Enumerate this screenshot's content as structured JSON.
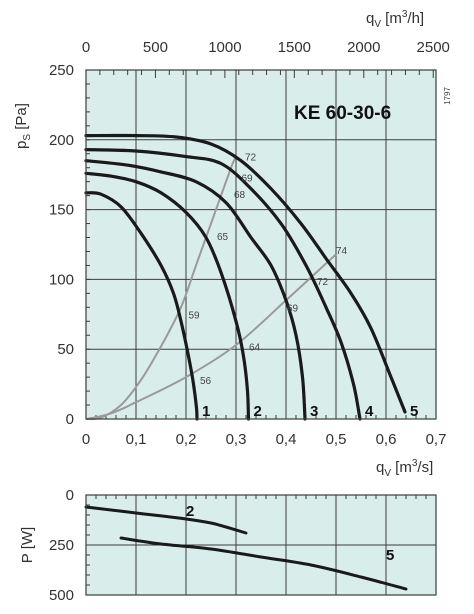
{
  "colors": {
    "plot_bg": "#d9eeea",
    "grid": "#3c3c3c",
    "curve": "#1a1a1a",
    "efficiency_curve": "#9a9a9a"
  },
  "chart_data": [
    {
      "type": "line",
      "title": "KE  60-30-6",
      "code": "1797",
      "xlabel": "qV [m3/s]",
      "x2label": "qV [m3/h]",
      "ylabel": "pS [Pa]",
      "xlim": [
        0,
        0.7
      ],
      "x2lim": [
        0,
        2520
      ],
      "ylim": [
        0,
        250
      ],
      "x_ticks": [
        "0",
        "0,1",
        "0,2",
        "0,3",
        "0,4",
        "0,5",
        "0,6",
        "0,7"
      ],
      "x2_ticks": [
        "0",
        "500",
        "1000",
        "1500",
        "2000",
        "2500"
      ],
      "y_ticks": [
        "0",
        "50",
        "100",
        "150",
        "200",
        "250"
      ],
      "grid": true,
      "series": [
        {
          "name": "1",
          "x": [
            0,
            0.03,
            0.07,
            0.11,
            0.15,
            0.175,
            0.19,
            0.205,
            0.215,
            0.221,
            0.222
          ],
          "y": [
            162,
            161,
            152,
            133,
            110,
            90,
            70,
            45,
            25,
            8,
            0
          ]
        },
        {
          "name": "2",
          "x": [
            0,
            0.05,
            0.1,
            0.15,
            0.2,
            0.24,
            0.27,
            0.3,
            0.315,
            0.323,
            0.325
          ],
          "y": [
            176,
            174,
            170,
            162,
            148,
            130,
            105,
            70,
            45,
            20,
            0
          ]
        },
        {
          "name": "3",
          "x": [
            0,
            0.08,
            0.15,
            0.22,
            0.28,
            0.33,
            0.37,
            0.4,
            0.42,
            0.433,
            0.438
          ],
          "y": [
            185,
            182,
            177,
            170,
            155,
            130,
            110,
            85,
            60,
            30,
            0
          ]
        },
        {
          "name": "4",
          "x": [
            0,
            0.1,
            0.2,
            0.27,
            0.33,
            0.39,
            0.44,
            0.48,
            0.51,
            0.535,
            0.548
          ],
          "y": [
            193,
            192,
            188,
            183,
            165,
            140,
            110,
            80,
            55,
            25,
            0
          ]
        },
        {
          "name": "5",
          "x": [
            0,
            0.1,
            0.18,
            0.25,
            0.31,
            0.37,
            0.43,
            0.48,
            0.53,
            0.57,
            0.61,
            0.638
          ],
          "y": [
            203,
            203,
            202,
            197,
            185,
            165,
            140,
            115,
            90,
            65,
            30,
            5
          ]
        }
      ],
      "efficiency_curves": [
        {
          "x": [
            0,
            0.03,
            0.07,
            0.11,
            0.15,
            0.19,
            0.22,
            0.26,
            0.29,
            0.3
          ],
          "y": [
            0,
            1,
            10,
            28,
            52,
            80,
            110,
            150,
            180,
            188
          ]
        },
        {
          "x": [
            0,
            0.05,
            0.1,
            0.2,
            0.3,
            0.4,
            0.5
          ],
          "y": [
            0,
            4,
            12,
            30,
            53,
            85,
            118
          ]
        }
      ],
      "efficiency_labels": [
        {
          "text": "72",
          "x": 0.318,
          "y": 188
        },
        {
          "text": "69",
          "x": 0.311,
          "y": 173
        },
        {
          "text": "68",
          "x": 0.296,
          "y": 161
        },
        {
          "text": "65",
          "x": 0.262,
          "y": 131
        },
        {
          "text": "59",
          "x": 0.205,
          "y": 75
        },
        {
          "text": "64",
          "x": 0.326,
          "y": 52
        },
        {
          "text": "56",
          "x": 0.228,
          "y": 28
        },
        {
          "text": "74",
          "x": 0.5,
          "y": 121
        },
        {
          "text": "72",
          "x": 0.462,
          "y": 99
        },
        {
          "text": "69",
          "x": 0.402,
          "y": 80
        }
      ]
    },
    {
      "type": "line",
      "ylabel": "P [W]",
      "xlim": [
        0,
        0.7
      ],
      "ylim": [
        0,
        500
      ],
      "y_inverted": true,
      "y_ticks": [
        "0",
        "250",
        "500"
      ],
      "grid": true,
      "series": [
        {
          "name": "2",
          "x": [
            0,
            0.1,
            0.2,
            0.25,
            0.28,
            0.32
          ],
          "y": [
            60,
            90,
            120,
            140,
            160,
            190
          ]
        },
        {
          "name": "5",
          "x": [
            0.07,
            0.15,
            0.25,
            0.35,
            0.45,
            0.55,
            0.64
          ],
          "y": [
            215,
            245,
            270,
            310,
            350,
            410,
            470
          ]
        }
      ]
    }
  ]
}
